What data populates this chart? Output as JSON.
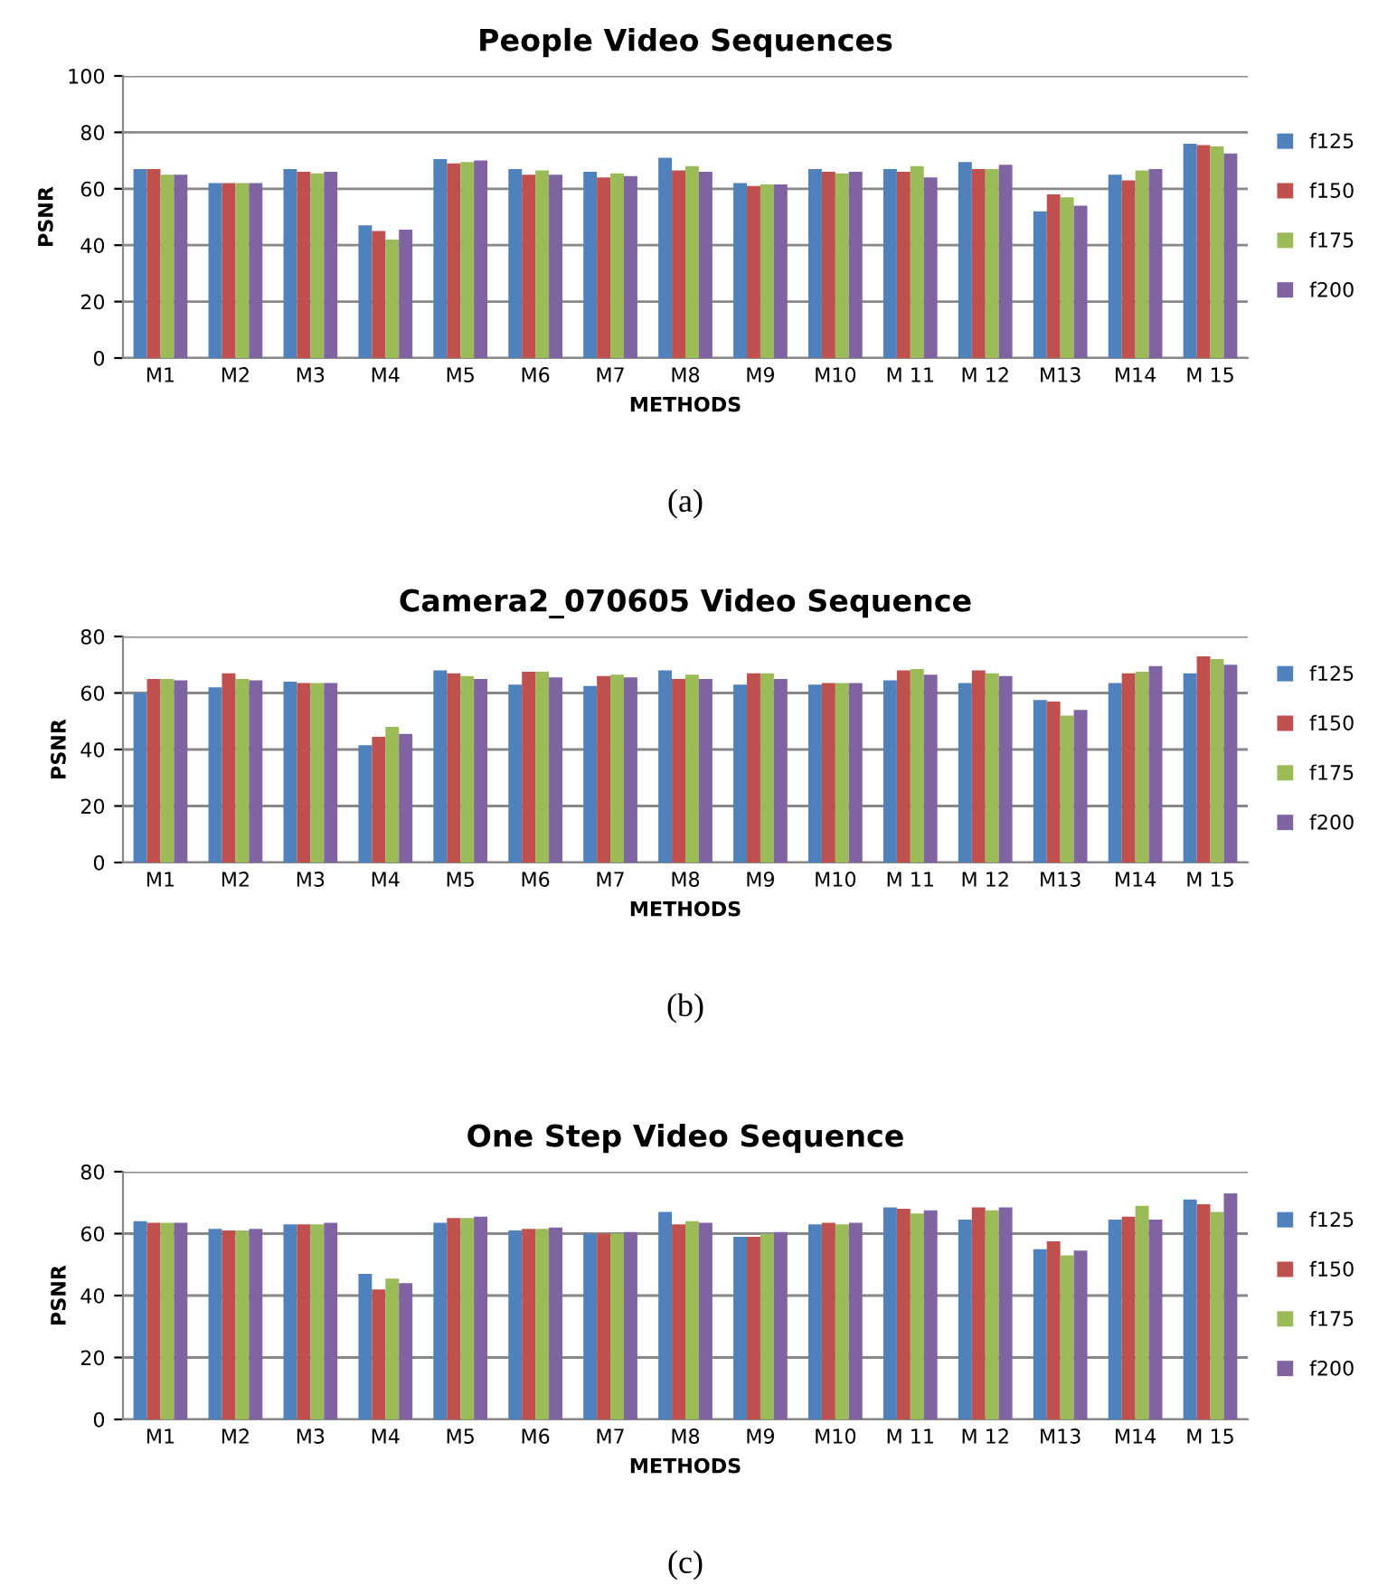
{
  "chart_data": [
    {
      "type": "bar",
      "title": "People Video Sequences",
      "xlabel": "METHODS",
      "ylabel": "PSNR",
      "annotations": [
        "(a)"
      ],
      "categories": [
        "M1",
        "M2",
        "M3",
        "M4",
        "M5",
        "M6",
        "M7",
        "M8",
        "M9",
        "M10",
        "M 11",
        "M 12",
        "M13",
        "M14",
        "M 15"
      ],
      "ylim": [
        0,
        100
      ],
      "yticks": [
        0,
        20,
        40,
        60,
        80,
        100
      ],
      "grid": "y",
      "legend": "right",
      "series": [
        {
          "name": "f125",
          "color": "#4f81bd",
          "values": [
            67,
            62,
            67,
            47,
            70.5,
            67,
            66,
            71,
            62,
            67,
            67,
            69.5,
            52,
            65,
            76
          ]
        },
        {
          "name": "f150",
          "color": "#c0504d",
          "values": [
            67,
            62,
            66,
            45,
            69,
            65,
            64,
            66.5,
            61,
            66,
            66,
            67,
            58,
            63,
            75.5
          ]
        },
        {
          "name": "f175",
          "color": "#9bbb59",
          "values": [
            65,
            62,
            65.5,
            42,
            69.5,
            66.5,
            65.5,
            68,
            61.5,
            65.5,
            68,
            67,
            57,
            66.5,
            75
          ]
        },
        {
          "name": "f200",
          "color": "#8064a2",
          "values": [
            65,
            62,
            66,
            45.5,
            70,
            65,
            64.5,
            66,
            61.5,
            66,
            64,
            68.5,
            54,
            67,
            72.5
          ]
        }
      ]
    },
    {
      "type": "bar",
      "title": "Camera2_070605 Video Sequence",
      "xlabel": "METHODS",
      "ylabel": "PSNR",
      "annotations": [
        "(b)"
      ],
      "categories": [
        "M1",
        "M2",
        "M3",
        "M4",
        "M5",
        "M6",
        "M7",
        "M8",
        "M9",
        "M10",
        "M 11",
        "M 12",
        "M13",
        "M14",
        "M 15"
      ],
      "ylim": [
        0,
        80
      ],
      "yticks": [
        0,
        20,
        40,
        60,
        80
      ],
      "grid": "y",
      "legend": "right",
      "series": [
        {
          "name": "f125",
          "color": "#4f81bd",
          "values": [
            60,
            62,
            64,
            41.5,
            68,
            63,
            62.5,
            68,
            63,
            63,
            64.5,
            63.5,
            57.5,
            63.5,
            67
          ]
        },
        {
          "name": "f150",
          "color": "#c0504d",
          "values": [
            65,
            67,
            63.5,
            44.5,
            67,
            67.5,
            66,
            65,
            67,
            63.5,
            68,
            68,
            57,
            67,
            73
          ]
        },
        {
          "name": "f175",
          "color": "#9bbb59",
          "values": [
            65,
            65,
            63.5,
            48,
            66,
            67.5,
            66.5,
            66.5,
            67,
            63.5,
            68.5,
            67,
            52,
            67.5,
            72
          ]
        },
        {
          "name": "f200",
          "color": "#8064a2",
          "values": [
            64.5,
            64.5,
            63.5,
            45.5,
            65,
            65.5,
            65.5,
            65,
            65,
            63.5,
            66.5,
            66,
            54,
            69.5,
            70
          ]
        }
      ]
    },
    {
      "type": "bar",
      "title": "One Step Video Sequence",
      "xlabel": "METHODS",
      "ylabel": "PSNR",
      "annotations": [
        "(c)"
      ],
      "categories": [
        "M1",
        "M2",
        "M3",
        "M4",
        "M5",
        "M6",
        "M7",
        "M8",
        "M9",
        "M10",
        "M 11",
        "M 12",
        "M13",
        "M14",
        "M 15"
      ],
      "ylim": [
        0,
        80
      ],
      "yticks": [
        0,
        20,
        40,
        60,
        80
      ],
      "grid": "y",
      "legend": "right",
      "series": [
        {
          "name": "f125",
          "color": "#4f81bd",
          "values": [
            64,
            61.5,
            63,
            47,
            63.5,
            61,
            60,
            67,
            59,
            63,
            68.5,
            64.5,
            55,
            64.5,
            71
          ]
        },
        {
          "name": "f150",
          "color": "#c0504d",
          "values": [
            63.5,
            61,
            63,
            42,
            65,
            61.5,
            60,
            63,
            59,
            63.5,
            68,
            68.5,
            57.5,
            65.5,
            69.5
          ]
        },
        {
          "name": "f175",
          "color": "#9bbb59",
          "values": [
            63.5,
            61,
            63,
            45.5,
            65,
            61.5,
            60,
            64,
            60,
            63,
            66.5,
            67.5,
            53,
            69,
            67
          ]
        },
        {
          "name": "f200",
          "color": "#8064a2",
          "values": [
            63.5,
            61.5,
            63.5,
            44,
            65.5,
            62,
            60.5,
            63.5,
            60.5,
            63.5,
            67.5,
            68.5,
            54.5,
            64.5,
            73
          ]
        }
      ]
    }
  ]
}
